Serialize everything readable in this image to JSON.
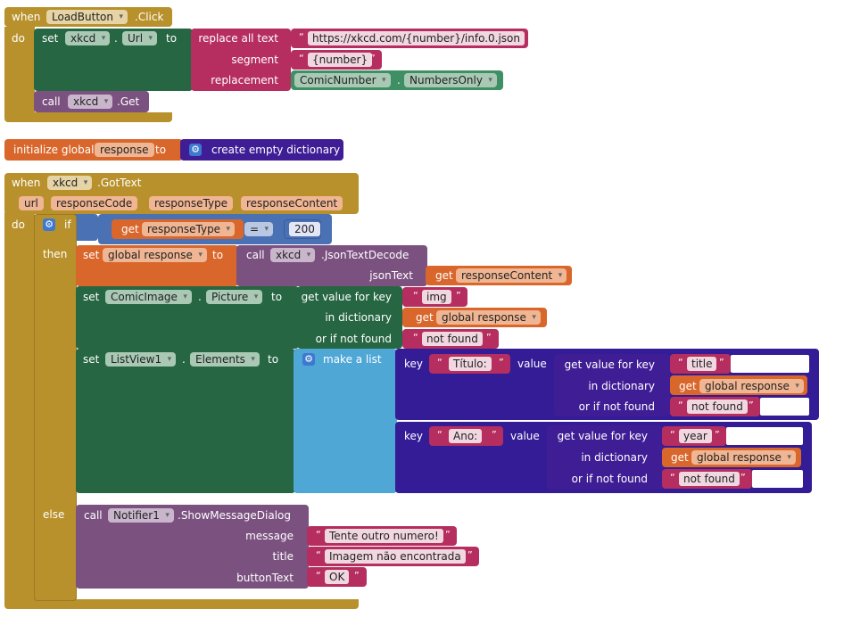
{
  "kw": {
    "when": "when",
    "do": "do",
    "set": "set",
    "to": "to",
    "dot": ".",
    "call": "call",
    "if": "if",
    "then": "then",
    "else": "else",
    "get": "get",
    "initialize_global": "initialize global",
    "key": "key",
    "value": "value",
    "make_a_list": "make a list",
    "eq": "=",
    "open_q": "“",
    "close_q": "”"
  },
  "block1": {
    "component": "LoadButton",
    "event": ".Click",
    "set_component": "xkcd",
    "set_prop": "Url",
    "replace_all_text": "replace all text",
    "segment_label": "segment",
    "replacement_label": "replacement",
    "url_text": "https://xkcd.com/{number}/info.0.json",
    "segment_text": "{number}",
    "replacement_component": "ComicNumber",
    "replacement_prop": "NumbersOnly",
    "call_component": "xkcd",
    "call_method": ".Get"
  },
  "block2": {
    "var_name": "response",
    "create_dict": "create empty dictionary"
  },
  "block3": {
    "component": "xkcd",
    "event": ".GotText",
    "params": [
      "url",
      "responseCode",
      "responseType",
      "responseContent"
    ],
    "if_get": "responseType",
    "if_num": "200",
    "then_set_global": "global response",
    "json_component": "xkcd",
    "json_method": ".JsonTextDecode",
    "json_param": "jsonText",
    "json_get": "responseContent",
    "set2_component": "ComicImage",
    "set2_prop": "Picture",
    "get_value_for_key": "get value for key",
    "in_dictionary": "in dictionary",
    "or_if_not_found": "or if not found",
    "key_img": "img",
    "global_response": "global response",
    "not_found": "not found",
    "set3_component": "ListView1",
    "set3_prop": "Elements",
    "key_titulo": "Título:",
    "key_title": "title",
    "key_ano": "Ano:",
    "key_year": "year",
    "notifier_component": "Notifier1",
    "notifier_method": ".ShowMessageDialog",
    "message_label": "message",
    "title_label": "title",
    "button_label": "buttonText",
    "message_text": "Tente outro numero!",
    "title_text": "Imagem não encontrada",
    "button_text": "OK"
  },
  "colors": {
    "event": "#b8912c",
    "setter": "#266643",
    "method": "#7b5180",
    "variable": "#d9662b",
    "text": "#b52e5f",
    "list": "#4fa7d6",
    "dictionary": "#3f1d95",
    "logic": "#4a71b4",
    "component_getter": "#3f8f65"
  }
}
